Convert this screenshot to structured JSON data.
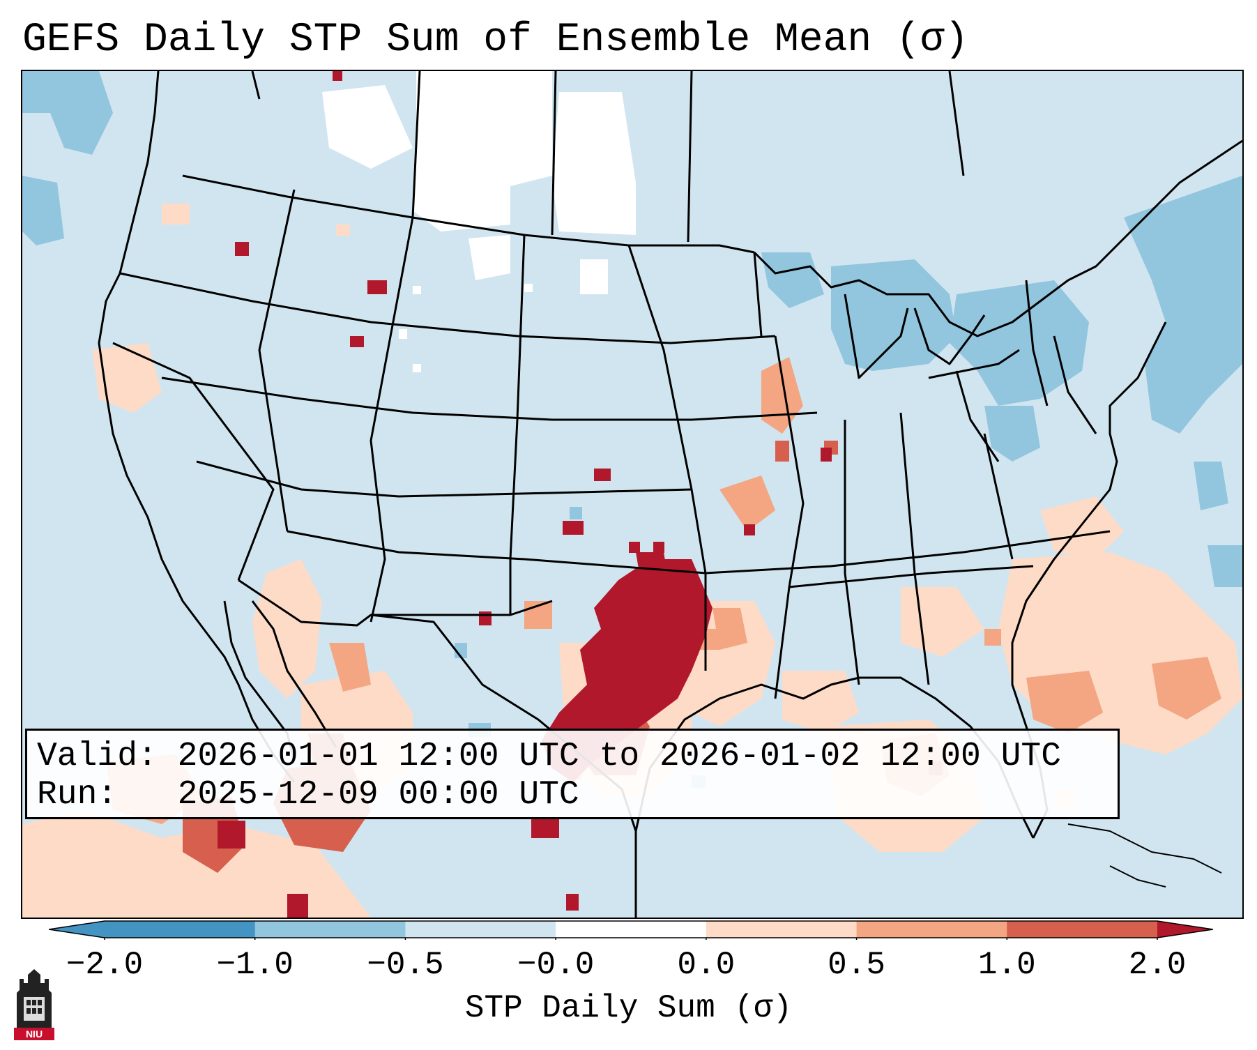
{
  "title": "GEFS Daily STP Sum of Ensemble Mean (σ)",
  "valid_line": "Valid: 2026-01-01 12:00 UTC to 2026-01-02 12:00 UTC",
  "run_line": "Run:   2025-12-09 00:00 UTC",
  "colorbar": {
    "label": "STP Daily Sum (σ)",
    "ticks": [
      "−2.0",
      "−1.0",
      "−0.5",
      "−0.0",
      "0.0",
      "0.5",
      "1.0",
      "2.0"
    ],
    "colors": [
      "#4393c3",
      "#92c5de",
      "#d1e5f0",
      "#ffffff",
      "#fddbc7",
      "#f4a582",
      "#d6604d",
      "#b2182b"
    ],
    "extend": "both"
  },
  "map": {
    "projection": "Lambert Conformal",
    "region": "Contiguous United States",
    "background_category": "-0.5 to -0.0",
    "highlight": "Strongest positive anomaly (> 1.0σ) over Oklahoma and north Texas"
  },
  "logo": {
    "text": "NIU"
  }
}
